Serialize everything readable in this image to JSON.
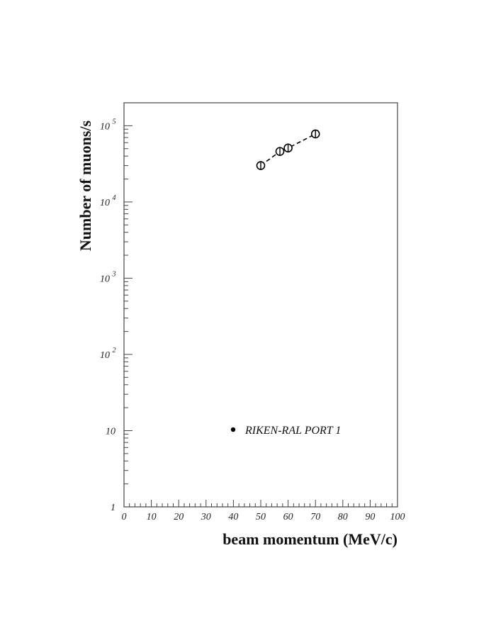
{
  "chart_data": {
    "type": "scatter",
    "xlabel": "beam momentum (MeV/c)",
    "ylabel": "Number of muons/s",
    "xlim": [
      0,
      100
    ],
    "ylim": [
      1,
      200000
    ],
    "yscale": "log",
    "grid": false,
    "legend_position": "bottom-left",
    "x_ticks": [
      0,
      10,
      20,
      30,
      40,
      50,
      60,
      70,
      80,
      90,
      100
    ],
    "x_tick_labels": [
      "0",
      "10",
      "20",
      "30",
      "40",
      "50",
      "60",
      "70",
      "80",
      "90",
      "100"
    ],
    "y_ticks": [
      {
        "value": 1,
        "base": "1",
        "exp": ""
      },
      {
        "value": 10,
        "base": "10",
        "exp": ""
      },
      {
        "value": 100,
        "base": "10",
        "exp": "2"
      },
      {
        "value": 1000,
        "base": "10",
        "exp": "3"
      },
      {
        "value": 10000,
        "base": "10",
        "exp": "4"
      },
      {
        "value": 100000,
        "base": "10",
        "exp": "5"
      }
    ],
    "series": [
      {
        "name": "RIKEN-RAL PORT 1",
        "color": "#000000",
        "points": [
          {
            "x": 50,
            "y": 30000
          },
          {
            "x": 57,
            "y": 46000
          },
          {
            "x": 60,
            "y": 51000
          },
          {
            "x": 70,
            "y": 78000
          }
        ]
      }
    ]
  }
}
